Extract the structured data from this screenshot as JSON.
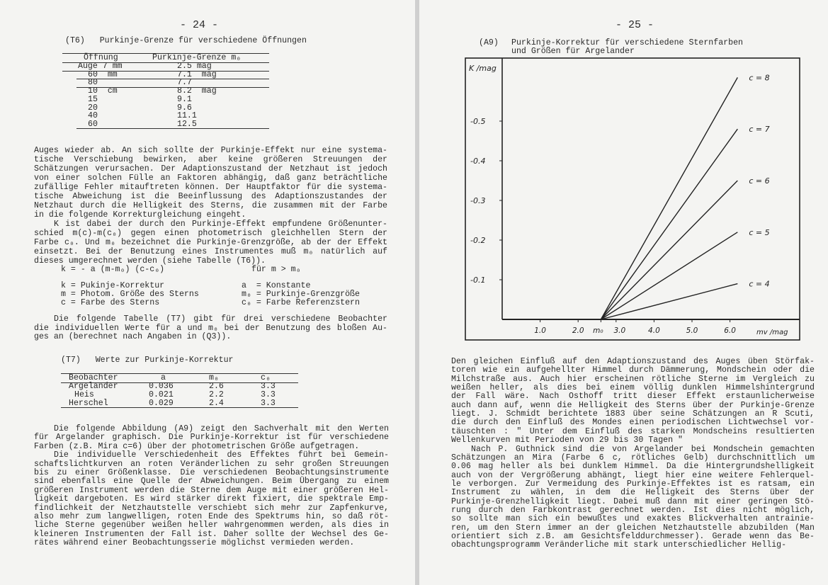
{
  "left_page": {
    "page_number": "- 24 -",
    "table_t6": {
      "caption": "(T6)   Purkinje-Grenze für verschiedene Öffnungen",
      "headers": [
        "Öffnung",
        "Purkinje-Grenze m₀"
      ],
      "rows": [
        [
          "Auge 7 mm",
          "2.5 mag"
        ],
        [
          "60  mm",
          "7.1  mag"
        ],
        [
          "80",
          "7.7"
        ],
        [
          "10  cm",
          "8.2  mag"
        ],
        [
          "15",
          "9.1"
        ],
        [
          "20",
          "9.6"
        ],
        [
          "40",
          "11.1"
        ],
        [
          "60",
          "12.5"
        ]
      ]
    },
    "paragraph1": [
      "Auges wieder ab.  An sich sollte der Purkinje-Effekt nur eine systema-",
      "tische  Verschiebung  bewirken,  aber  keine  größeren  Streuungen der",
      "Schätzungen verursachen.  Der Adaptionszustand der Netzhaut ist jedoch",
      "von  einer solchen Fülle an Faktoren abhängig,  daß ganz beträchtliche",
      "zufällige Fehler mitauftreten können. Der Hauptfaktor für die systema-",
      "tische Abweichung ist die  Beeinflussung  des  Adaptionszustandes  der",
      "Netzhaut  durch die Helligkeit des Sterns,  die zusammen mit der Farbe",
      "in die folgende Korrekturgleichung eingeht.",
      "    K ist dabei der durch den Purkinje-Effekt empfundene Größenunter-",
      "schied m(c)-m(c₀) gegen einen  photometrisch  gleichhellen  Stern  der",
      "Farbe c₀. Und m₀ bezeichnet die Purkinje-Grenzgröße, ab der der Effekt",
      "einsetzt.  Bei  der  Benutzung eines Instrumentes muß m₀ natürlich auf",
      "dieses umgerechnet werden (siehe Tabelle (T6))."
    ],
    "formula": "k = - a (m-m₀) (c-c₀)",
    "formula_condition": "für m > m₀",
    "legend_left": [
      "k = Pukinje-Korrektur",
      "m = Photom. Größe des Sterns",
      "c = Farbe des Sterns"
    ],
    "legend_right": [
      "a  = Konstante",
      "m₀ = Purkinje-Grenzgröße",
      "c₀ = Farbe Referenzstern"
    ],
    "paragraph2": [
      "    Die folgende Tabelle (T7) gibt für drei  verschiedene  Beobachter",
      "die  individuellen Werte für a und m₀ bei der Benutzung des bloßen Au-",
      "ges an (berechnet nach Angaben in (Q3))."
    ],
    "table_t7": {
      "caption": "(T7)   Werte zur Purkinje-Korrektur",
      "headers": [
        "Beobachter",
        "a",
        "m₀",
        "c₀"
      ],
      "rows": [
        [
          "Argelander",
          "0.036",
          "2.6",
          "3.3"
        ],
        [
          "Heis",
          "0.021",
          "2.2",
          "3.3"
        ],
        [
          "Herschel",
          "0.029",
          "2.4",
          "3.3"
        ]
      ]
    },
    "paragraph3": [
      "    Die folgende Abbildung (A9) zeigt den Sachverhalt mit den  Werten",
      "für Argelander graphisch.  Die Purkinje-Korrektur ist für verschiedene",
      "Farben (z.B. Mira c=6) über der photometrischen Größe aufgetragen.",
      "    Die individuelle Verschiedenheit des Effektes führt  bei  Gemein-",
      "schaftslichtkurven  an  roten Veränderlichen zu sehr großen Streuungen",
      "bis zu einer Größenklasse.  Die verschiedenen  Beobachtungsinstrumente",
      "sind  ebenfalls  eine Quelle der Abweichungen.  Beim Übergang zu einem",
      "größeren Instrument werden die Sterne dem Auge mit einer größeren Hel-",
      "ligkeit dargeboten. Es wird stärker direkt fixiert, die spektrale Emp-",
      "findlichkeit der Netzhautstelle verschiebt sich mehr zur  Zapfenkurve,",
      "also mehr zum langwelligen,  roten Ende des Spektrums hin, so daß röt-",
      "liche Sterne gegenüber weißen heller wahrgenommen werden,  als dies in",
      "kleineren Instrumenten der Fall ist.  Daher sollte der Wechsel des Ge-",
      "rätes während einer Beobachtungsserie möglichst vermieden werden."
    ]
  },
  "right_page": {
    "page_number": "- 25 -",
    "figure_label": "(A9)",
    "figure_caption": [
      "Purkinje-Korrektur für verschiedene Sternfarben",
      "und Größen für Argelander"
    ],
    "paragraph": [
      "Den  gleichen Einfluß auf den Adaptionszustand des Auges üben Störfak-",
      "toren wie ein aufgehellter Himmel durch Dämmerung, Mondschein oder die",
      "Milchstraße aus.  Auch hier erscheinen rötliche Sterne im Vergleich zu",
      "weißen  heller,  als  dies bei einem völlig dunklen Himmelshintergrund",
      "der Fall wäre.  Nach Osthoff tritt  dieser  Effekt  erstaunlicherweise",
      "auch dann auf, wenn die Helligkeit des Sterns über der Purkinje-Grenze",
      "liegt.  J.  Schmidt berichtete 1883 über seine Schätzungen an R Scuti,",
      "die durch den Einfluß des Mondes einen periodischen Lichtwechsel  vor-",
      "täuschten  :  \" Unter dem Einfluß des starken Mondscheins resultierten",
      "Wellenkurven mit Perioden von 29 bis 30 Tagen \"",
      "    Nach P. Guthnick sind die von Argelander bei Mondschein gemachten",
      "Schätzungen an Mira (Farbe 6 c,  rötliches Gelb)  durchschnittlich  um",
      "0.06 mag heller als bei dunklem Himmel.  Da die Hintergrundshelligkeit",
      "auch von der Vergrößerung abhängt, liegt hier eine weitere Fehlerquel-",
      "le verborgen. Zur Vermeidung des Purkinje-Effektes ist es ratsam,  ein",
      "Instrument  zu  wählen,  in  dem  die  Helligkeit  des Sterns über der",
      "Purkinje-Grenzhelligkeit liegt. Dabei muß dann mit einer geringen Stö-",
      "rung durch den Farbkontrast gerechnet werden.  Ist dies nicht möglich,",
      "so  sollte man sich ein bewußtes und exaktes Blickverhalten antrainie-",
      "ren, um den Stern immer an der gleichen Netzhautstelle abzubilden (Man",
      "orientiert sich z.B. am Gesichtsfelddurchmesser).  Gerade wenn das Be-",
      "obachtungsprogramm  Veränderliche  mit stark unterschiedlicher Hellig-"
    ]
  },
  "chart_data": {
    "type": "line",
    "title": "",
    "ylabel": "K /mag",
    "xlabel": "mv /mag",
    "x_tick_labels": [
      "1.0",
      "2.0",
      "m₀",
      "3.0",
      "4.0",
      "5.0",
      "6.0"
    ],
    "x_ticks": [
      1.0,
      2.0,
      2.6,
      3.0,
      4.0,
      5.0,
      6.0
    ],
    "y_tick_labels": [
      "-0.5",
      "-0.4",
      "-0.3",
      "-0.2",
      "-0.1"
    ],
    "y_ticks": [
      -0.5,
      -0.4,
      -0.3,
      -0.2,
      -0.1
    ],
    "xlim": [
      0,
      7.3
    ],
    "ylim": [
      0,
      -0.68
    ],
    "y_axis_inverted": true,
    "grid": false,
    "series": [
      {
        "name": "c = 8",
        "x": [
          2.6,
          6.2
        ],
        "y": [
          0,
          -0.61
        ]
      },
      {
        "name": "c = 7",
        "x": [
          2.6,
          6.2
        ],
        "y": [
          0,
          -0.48
        ]
      },
      {
        "name": "c = 6",
        "x": [
          2.6,
          6.2
        ],
        "y": [
          0,
          -0.35
        ]
      },
      {
        "name": "c = 5",
        "x": [
          2.6,
          6.2
        ],
        "y": [
          0,
          -0.22
        ]
      },
      {
        "name": "c = 4",
        "x": [
          2.6,
          6.2
        ],
        "y": [
          0,
          -0.09
        ]
      }
    ],
    "line_color": "#222222"
  }
}
